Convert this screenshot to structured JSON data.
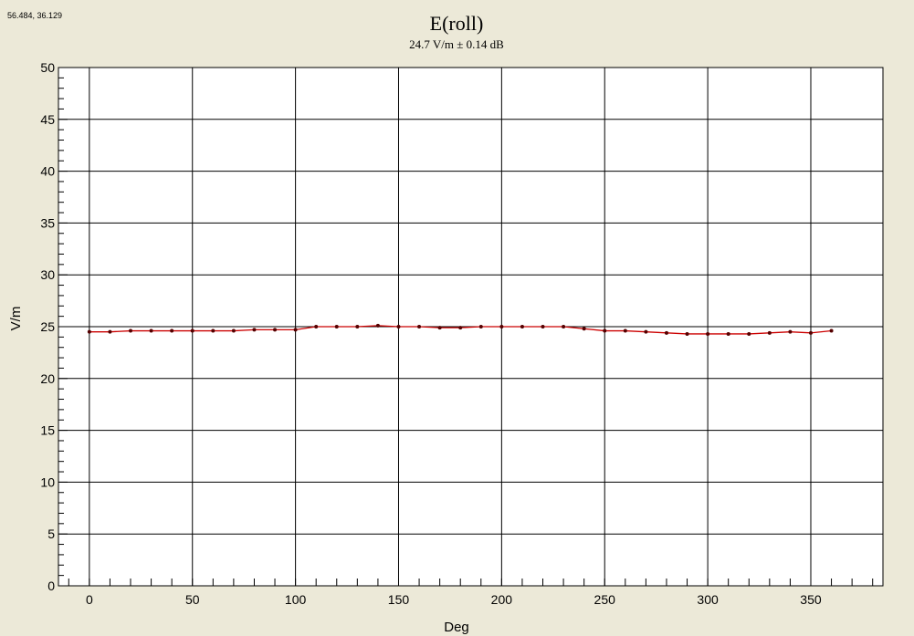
{
  "cursor_readout": "56.484, 36.129",
  "chart_data": {
    "type": "line",
    "title": "E(roll)",
    "subtitle": "24.7 V/m ± 0.14 dB",
    "xlabel": "Deg",
    "ylabel": "V/m",
    "xlim": [
      -15,
      385
    ],
    "ylim": [
      0,
      50
    ],
    "xticks": [
      0,
      50,
      100,
      150,
      200,
      250,
      300,
      350
    ],
    "yticks": [
      0,
      5,
      10,
      15,
      20,
      25,
      30,
      35,
      40,
      45,
      50
    ],
    "grid": true,
    "series": [
      {
        "color": "#cc0000",
        "marker_color": "#550000",
        "x": [
          0,
          10,
          20,
          30,
          40,
          50,
          60,
          70,
          80,
          90,
          100,
          110,
          120,
          130,
          140,
          150,
          160,
          170,
          180,
          190,
          200,
          210,
          220,
          230,
          240,
          250,
          260,
          270,
          280,
          290,
          300,
          310,
          320,
          330,
          340,
          350,
          360
        ],
        "y": [
          24.5,
          24.5,
          24.6,
          24.6,
          24.6,
          24.6,
          24.6,
          24.6,
          24.7,
          24.7,
          24.7,
          25.0,
          25.0,
          25.0,
          25.1,
          25.0,
          25.0,
          24.9,
          24.9,
          25.0,
          25.0,
          25.0,
          25.0,
          25.0,
          24.8,
          24.6,
          24.6,
          24.5,
          24.4,
          24.3,
          24.3,
          24.3,
          24.3,
          24.4,
          24.5,
          24.4,
          24.6
        ]
      }
    ]
  }
}
